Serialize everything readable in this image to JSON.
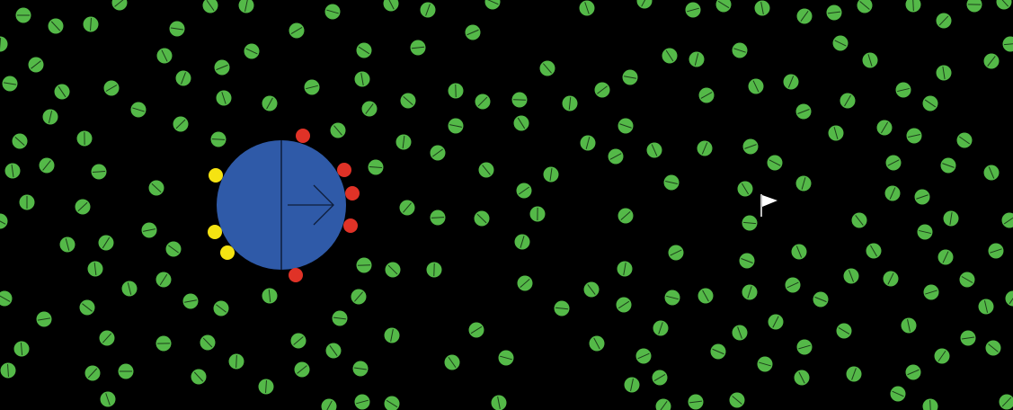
{
  "colors": {
    "background": "#000000",
    "agent_body": "#2f5aa8",
    "agent_outline": "#0e1d3a",
    "food": "#54b948",
    "food_mark": "#1c3f1a",
    "sensor_red": "#e03227",
    "sensor_yellow": "#f5e312",
    "goal_flag": "#ffffff"
  },
  "agent": {
    "heading": "right",
    "icon": "arrow-right-icon"
  },
  "goal": {
    "icon": "flag-icon"
  },
  "sensors": [
    {
      "color": "red"
    },
    {
      "color": "red"
    },
    {
      "color": "red"
    },
    {
      "color": "red"
    },
    {
      "color": "red"
    },
    {
      "color": "yellow"
    },
    {
      "color": "yellow"
    },
    {
      "color": "yellow"
    }
  ]
}
